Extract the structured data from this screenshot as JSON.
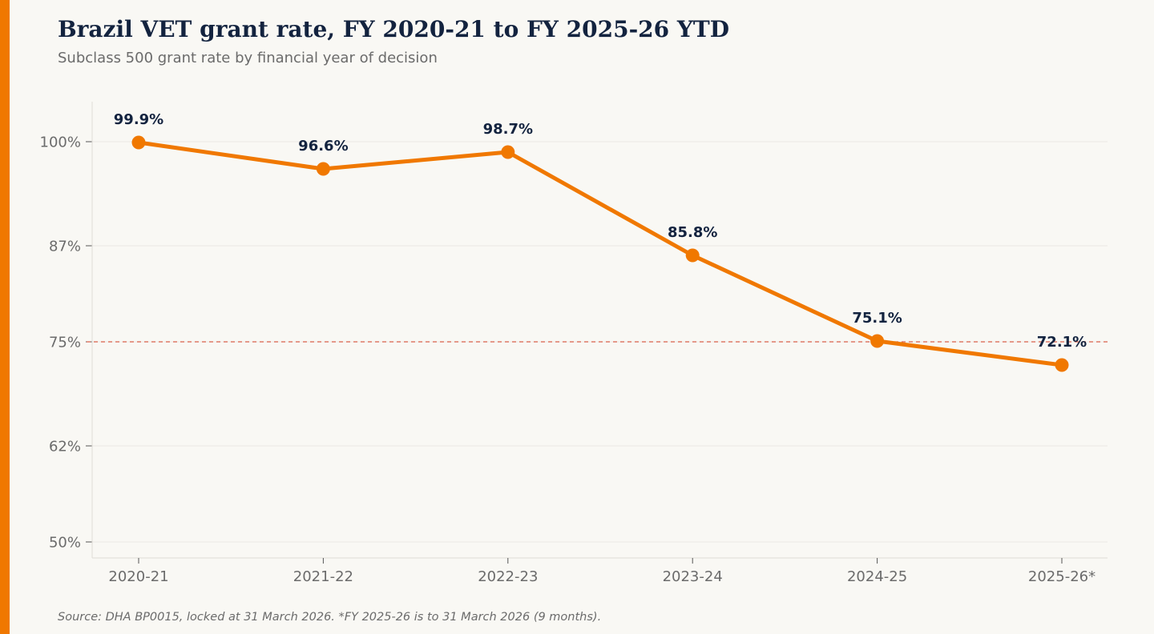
{
  "chart_data": {
    "type": "line",
    "title": "Brazil VET grant rate, FY 2020-21 to FY 2025-26 YTD",
    "subtitle": "Subclass 500 grant rate by financial year of decision",
    "categories": [
      "2020-21",
      "2021-22",
      "2022-23",
      "2023-24",
      "2024-25",
      "2025-26*"
    ],
    "series": [
      {
        "values": [
          99.9,
          96.6,
          98.7,
          85.8,
          75.1,
          72.1
        ],
        "data_labels": [
          "99.9%",
          "96.6%",
          "98.7%",
          "85.8%",
          "75.1%",
          "72.1%"
        ],
        "color": "#f07800"
      }
    ],
    "yticks": [
      50,
      62,
      75,
      87,
      100
    ],
    "ytick_labels": [
      "50%",
      "62%",
      "75%",
      "87%",
      "100%"
    ],
    "ylim": [
      48,
      105
    ],
    "reference_line": {
      "value": 75,
      "style": "dashed",
      "color": "#d9604a"
    },
    "grid": "horizontal",
    "xlabel": "",
    "ylabel": ""
  },
  "source_note": "Source: DHA BP0015, locked at 31 March 2026. *FY 2025-26 is to 31 March 2026 (9 months).",
  "colors": {
    "accent": "#f07800",
    "title": "#13233f",
    "muted_text": "#6b6b6b",
    "gridline": "#ebe9e4",
    "axis": "#dedcd6",
    "reference_line": "#d9604a",
    "background": "#f9f8f4"
  }
}
